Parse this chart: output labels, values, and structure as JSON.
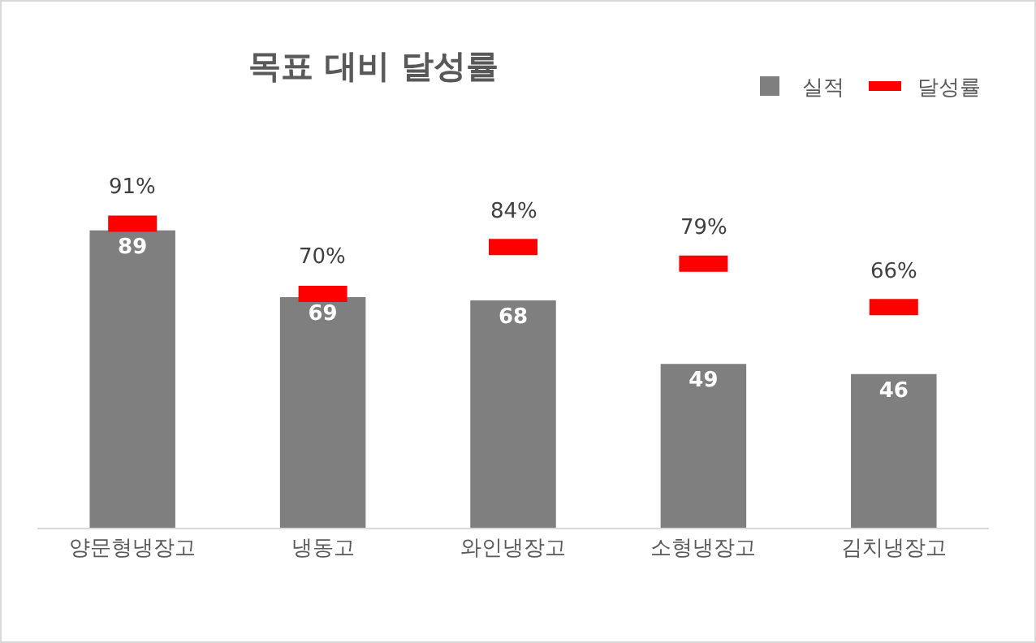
{
  "chart_data": {
    "type": "bar",
    "title": "목표 대비 달성률",
    "categories": [
      "양문형냉장고",
      "냉동고",
      "와인냉장고",
      "소형냉장고",
      "김치냉장고"
    ],
    "series": [
      {
        "name": "실적",
        "color": "#7f7f7f",
        "values": [
          89,
          69,
          68,
          49,
          46
        ],
        "value_labels": [
          "89",
          "69",
          "68",
          "49",
          "46"
        ]
      },
      {
        "name": "달성률",
        "type": "scatter",
        "color": "#ff0000",
        "values": [
          91,
          70,
          84,
          79,
          66
        ],
        "value_labels": [
          "91%",
          "70%",
          "84%",
          "79%",
          "66%"
        ]
      }
    ],
    "tick_labels": "x",
    "grid": false,
    "legend": "top right"
  }
}
